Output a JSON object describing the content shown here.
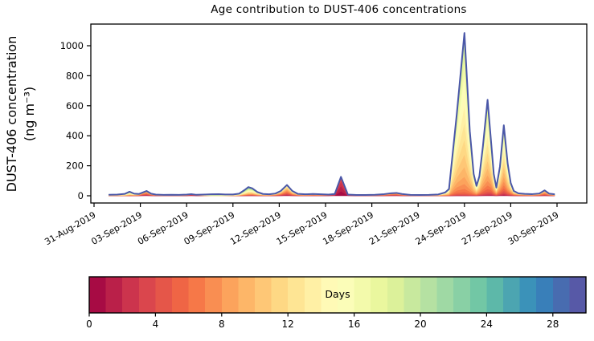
{
  "chart_data": {
    "type": "area",
    "subtype": "stacked-area-by-age",
    "title": "Age contribution to DUST-406 concentrations",
    "ylabel_line1": "DUST-406 concentration",
    "ylabel_line2": "(ng m⁻³)",
    "xlabel": "",
    "x_axis": {
      "tick_days": [
        0,
        3,
        6,
        9,
        12,
        15,
        18,
        21,
        24,
        27,
        30
      ],
      "tick_labels": [
        "31-Aug-2019",
        "03-Sep-2019",
        "06-Sep-2019",
        "09-Sep-2019",
        "12-Sep-2019",
        "15-Sep-2019",
        "18-Sep-2019",
        "21-Sep-2019",
        "24-Sep-2019",
        "27-Sep-2019",
        "30-Sep-2019"
      ],
      "label_rotation_deg": 30,
      "xlim_days": [
        -0.2,
        31.9
      ]
    },
    "y_axis": {
      "ticks": [
        0,
        200,
        400,
        600,
        800,
        1000
      ],
      "ylim": [
        -48,
        1145
      ]
    },
    "grid": false,
    "legend": "colorbar-bottom",
    "colorbar": {
      "label": "Days",
      "min": 0,
      "max": 30,
      "segments": 30,
      "ticks": [
        0,
        4,
        8,
        12,
        16,
        20,
        24,
        28
      ]
    },
    "colormap_name": "Spectral",
    "colormap_anchors": [
      [
        0.0,
        "#9e0142"
      ],
      [
        0.1,
        "#d53e4f"
      ],
      [
        0.2,
        "#f46d43"
      ],
      [
        0.3,
        "#fdae61"
      ],
      [
        0.4,
        "#fee08b"
      ],
      [
        0.5,
        "#ffffbf"
      ],
      [
        0.6,
        "#e6f598"
      ],
      [
        0.7,
        "#abdda4"
      ],
      [
        0.8,
        "#66c2a5"
      ],
      [
        0.9,
        "#3288bd"
      ],
      [
        1.0,
        "#5e4fa2"
      ]
    ],
    "line_color": "#4a57a8",
    "axis_color": "#000000",
    "series": {
      "points_format": [
        "t_days_since_31Aug2019",
        "total_ng_m3",
        "age_mean_days",
        "age_spread_days"
      ],
      "points": [
        [
          0.95,
          7,
          12,
          5
        ],
        [
          1.5,
          8,
          12,
          5
        ],
        [
          2.0,
          13,
          14,
          6
        ],
        [
          2.3,
          27,
          14,
          6
        ],
        [
          2.6,
          14,
          12,
          6
        ],
        [
          2.9,
          12,
          9,
          5
        ],
        [
          3.15,
          22,
          6,
          4.5
        ],
        [
          3.4,
          32,
          6,
          4.5
        ],
        [
          3.7,
          14,
          7,
          5
        ],
        [
          4.0,
          8,
          8,
          5
        ],
        [
          4.5,
          6,
          10,
          5
        ],
        [
          5.0,
          7,
          10,
          5
        ],
        [
          5.5,
          6,
          10,
          5
        ],
        [
          6.0,
          8,
          8,
          5
        ],
        [
          6.3,
          11,
          3,
          3
        ],
        [
          6.6,
          7,
          6,
          4
        ],
        [
          7.1,
          8,
          14,
          5
        ],
        [
          7.6,
          10,
          20,
          5
        ],
        [
          8.1,
          11,
          20,
          5
        ],
        [
          8.5,
          9,
          18,
          5
        ],
        [
          9.0,
          9,
          15,
          6
        ],
        [
          9.4,
          14,
          14,
          7
        ],
        [
          9.75,
          38,
          14,
          7
        ],
        [
          10.0,
          58,
          14,
          7
        ],
        [
          10.25,
          50,
          13,
          7
        ],
        [
          10.6,
          24,
          12,
          6
        ],
        [
          10.95,
          12,
          11,
          6
        ],
        [
          11.35,
          10,
          10,
          5
        ],
        [
          11.75,
          15,
          9,
          5
        ],
        [
          12.1,
          32,
          8.5,
          5
        ],
        [
          12.5,
          72,
          8,
          5
        ],
        [
          12.85,
          32,
          9,
          5
        ],
        [
          13.2,
          13,
          9,
          5
        ],
        [
          13.7,
          10,
          9,
          5
        ],
        [
          14.2,
          12,
          8,
          5
        ],
        [
          14.7,
          10,
          8,
          5
        ],
        [
          15.2,
          8,
          6,
          4
        ],
        [
          15.6,
          12,
          2.5,
          2.2
        ],
        [
          16.0,
          126,
          1.5,
          1.8
        ],
        [
          16.45,
          8,
          3,
          3
        ],
        [
          17.0,
          5,
          7,
          4
        ],
        [
          17.6,
          5,
          8,
          5
        ],
        [
          18.2,
          7,
          8,
          5
        ],
        [
          18.8,
          11,
          7,
          4
        ],
        [
          19.25,
          17,
          6,
          4
        ],
        [
          19.6,
          19,
          6,
          4
        ],
        [
          19.95,
          12,
          7,
          4
        ],
        [
          20.5,
          6,
          8,
          5
        ],
        [
          21.1,
          5,
          9,
          5
        ],
        [
          21.7,
          6,
          10,
          5
        ],
        [
          22.3,
          9,
          11,
          5
        ],
        [
          22.75,
          22,
          12,
          5
        ],
        [
          23.0,
          45,
          12.5,
          4.5
        ],
        [
          23.5,
          540,
          13,
          4
        ],
        [
          24.0,
          1085,
          13.5,
          3.8
        ],
        [
          24.35,
          430,
          13,
          4
        ],
        [
          24.6,
          145,
          12.5,
          4.5
        ],
        [
          24.78,
          66,
          12,
          5
        ],
        [
          24.97,
          130,
          12,
          5
        ],
        [
          25.2,
          330,
          12,
          4.5
        ],
        [
          25.5,
          640,
          12.5,
          4.5
        ],
        [
          25.72,
          370,
          12,
          5
        ],
        [
          25.9,
          145,
          11.5,
          5
        ],
        [
          26.07,
          55,
          11,
          5
        ],
        [
          26.3,
          195,
          11.5,
          5
        ],
        [
          26.55,
          470,
          12,
          5
        ],
        [
          26.8,
          215,
          12,
          5
        ],
        [
          27.0,
          85,
          11,
          5
        ],
        [
          27.2,
          32,
          10,
          5
        ],
        [
          27.5,
          16,
          9,
          5
        ],
        [
          27.9,
          13,
          9,
          4.5
        ],
        [
          28.4,
          11,
          9,
          4.5
        ],
        [
          28.85,
          15,
          8,
          4
        ],
        [
          29.2,
          36,
          7.5,
          3.8
        ],
        [
          29.5,
          14,
          8,
          4
        ],
        [
          29.85,
          10,
          10,
          5
        ]
      ]
    },
    "annotations": {
      "max_peak": {
        "date": "24-Sep-2019",
        "value": 1085
      },
      "second_peak": {
        "date": "25-Sep-2019 12:00",
        "value": 640
      },
      "third_peak": {
        "date": "26-Sep-2019 12:00",
        "value": 470
      },
      "young_dust_spike": {
        "date": "16-Sep-2019",
        "value": 126
      }
    }
  }
}
